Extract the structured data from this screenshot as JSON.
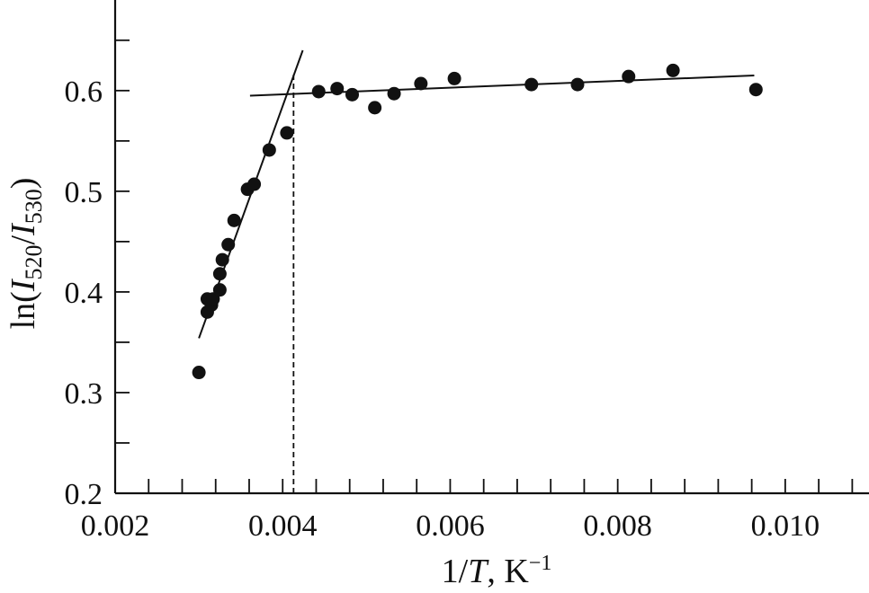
{
  "chart_data": {
    "type": "scatter",
    "xlabel_parts": {
      "pre": "1/",
      "var": "T",
      "post": ", K",
      "sup": "−1"
    },
    "ylabel_parts": {
      "pre": "ln(",
      "v1": "I",
      "s1": "520",
      "mid": "/",
      "v2": "I",
      "s2": "530",
      "post": ")"
    },
    "xlim": [
      0.002,
      0.011
    ],
    "ylim": [
      0.2,
      0.69
    ],
    "x_major_ticks": [
      0.002,
      0.004,
      0.006,
      0.008,
      0.01
    ],
    "x_tick_labels": [
      "0.002",
      "0.004",
      "0.006",
      "0.008",
      "0.010"
    ],
    "x_minor_ticks": [
      0.0024,
      0.0028,
      0.0032,
      0.0036,
      0.0044,
      0.0048,
      0.0052,
      0.0056,
      0.0064,
      0.0068,
      0.0072,
      0.0076,
      0.0084,
      0.0088,
      0.0092,
      0.0096,
      0.0104,
      0.0108
    ],
    "y_major_ticks": [
      0.2,
      0.3,
      0.4,
      0.5,
      0.6
    ],
    "y_tick_labels": [
      "0.2",
      "0.3",
      "0.4",
      "0.5",
      "0.6"
    ],
    "y_minor_ticks": [
      0.25,
      0.35,
      0.45,
      0.55,
      0.65
    ],
    "points": [
      {
        "x": 0.003,
        "y": 0.32
      },
      {
        "x": 0.0031,
        "y": 0.38
      },
      {
        "x": 0.0031,
        "y": 0.393
      },
      {
        "x": 0.00315,
        "y": 0.387
      },
      {
        "x": 0.00317,
        "y": 0.393
      },
      {
        "x": 0.00325,
        "y": 0.402
      },
      {
        "x": 0.00325,
        "y": 0.418
      },
      {
        "x": 0.00328,
        "y": 0.432
      },
      {
        "x": 0.00335,
        "y": 0.447
      },
      {
        "x": 0.00342,
        "y": 0.471
      },
      {
        "x": 0.00358,
        "y": 0.502
      },
      {
        "x": 0.00366,
        "y": 0.507
      },
      {
        "x": 0.00384,
        "y": 0.541
      },
      {
        "x": 0.00405,
        "y": 0.558
      },
      {
        "x": 0.00443,
        "y": 0.599
      },
      {
        "x": 0.00465,
        "y": 0.602
      },
      {
        "x": 0.00483,
        "y": 0.596
      },
      {
        "x": 0.0051,
        "y": 0.583
      },
      {
        "x": 0.00533,
        "y": 0.597
      },
      {
        "x": 0.00565,
        "y": 0.607
      },
      {
        "x": 0.00605,
        "y": 0.612
      },
      {
        "x": 0.00697,
        "y": 0.606
      },
      {
        "x": 0.00752,
        "y": 0.606
      },
      {
        "x": 0.00813,
        "y": 0.614
      },
      {
        "x": 0.00866,
        "y": 0.62
      },
      {
        "x": 0.00965,
        "y": 0.601
      }
    ],
    "fit_lines": [
      {
        "x1": 0.003,
        "y1": 0.354,
        "x2": 0.00424,
        "y2": 0.64
      },
      {
        "x1": 0.00361,
        "y1": 0.595,
        "x2": 0.00963,
        "y2": 0.615
      }
    ],
    "vertical_marker": {
      "x": 0.00413,
      "y_from": 0.2,
      "y_to": 0.618
    },
    "grid": false,
    "legend": "none"
  }
}
